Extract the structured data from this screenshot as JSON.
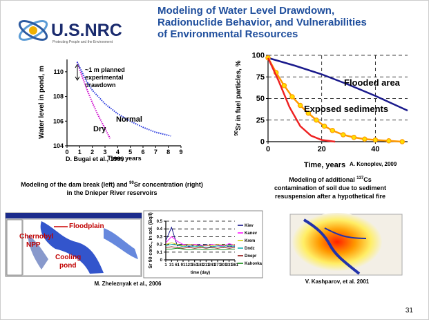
{
  "header": {
    "logo": "U.S.NRC",
    "logo_tagline": "Protecting People and the Environment",
    "title": [
      "Modeling of Water Level Drawdown,",
      "Radionuclide Behavior, and Vulnerabilities",
      "of Environmental Resources"
    ]
  },
  "pond_chart": {
    "type": "line",
    "ylabel": "Water level in pond, m",
    "xlabel": "Time, years",
    "annotation": [
      "~1 m planned",
      "experimental",
      "drawdown"
    ],
    "xlim": [
      0,
      9
    ],
    "ylim": [
      104,
      111
    ],
    "xticks": [
      0,
      1,
      2,
      3,
      4,
      5,
      6,
      7,
      8,
      9
    ],
    "yticks": [
      104,
      106,
      108,
      110
    ],
    "grid": false,
    "series": [
      {
        "name": "Dry",
        "color": "#cc00cc",
        "x": [
          0.8,
          1.2,
          1.6,
          2,
          2.4,
          2.8,
          3.2,
          3.4
        ],
        "values": [
          110.8,
          109.6,
          108.5,
          107.5,
          106.6,
          105.8,
          105,
          104.6
        ]
      },
      {
        "name": "Normal",
        "color": "#2233dd",
        "x": [
          0.8,
          1.5,
          2,
          3,
          4,
          5,
          6,
          7,
          8.2
        ],
        "values": [
          110.8,
          109.3,
          108.5,
          107.4,
          106.6,
          106,
          105.5,
          105.1,
          104.8
        ]
      }
    ],
    "caption": "D. Bugai et al., 1999"
  },
  "particles_chart": {
    "type": "line",
    "ylabel": {
      "sup": "90",
      "text": "Sr in fuel particles, %"
    },
    "xlabel": "Time, years",
    "xlim": [
      0,
      52
    ],
    "ylim": [
      0,
      100
    ],
    "xticks": [
      0,
      20,
      40
    ],
    "yticks": [
      0,
      25,
      50,
      75,
      100
    ],
    "grid": true,
    "series": [
      {
        "name": "Flooded area",
        "color": "#1a1a8c",
        "x": [
          0,
          10,
          20,
          30,
          40,
          52
        ],
        "values": [
          97,
          88,
          78,
          66,
          53,
          36
        ]
      },
      {
        "name": "Exposed sediments",
        "color": "#ff9900",
        "marker": "circle",
        "x": [
          0,
          3,
          6,
          9,
          12,
          15,
          18,
          21,
          24,
          28,
          32,
          36,
          40,
          45,
          50
        ],
        "values": [
          97,
          80,
          65,
          52,
          42,
          33,
          25,
          18,
          13,
          8,
          5,
          3,
          2,
          1,
          0
        ]
      },
      {
        "color": "#ee2222",
        "x": [
          0,
          4,
          8,
          12,
          16,
          20,
          25
        ],
        "values": [
          97,
          70,
          40,
          18,
          7,
          2,
          0
        ]
      }
    ],
    "caption": "A. Konoplev, 2009"
  },
  "dam_section": {
    "title": [
      "Modeling of the dam break (left) and ",
      "90",
      "Sr concentration (right)",
      "in the Dnieper River reservoirs"
    ],
    "labels": [
      "Chernobyl",
      "NPP",
      "Floodplain",
      "Cooling",
      "pond"
    ],
    "caption": "M. Zheleznyak et al., 2006"
  },
  "sr_chart": {
    "type": "line",
    "ylabel": "Sr 90 conc., in sol. (Bq/l)",
    "xlabel": "time (day)",
    "xlim": [
      1,
      361
    ],
    "ylim": [
      0,
      0.5
    ],
    "xticks": [
      1,
      31,
      61,
      91,
      121,
      151,
      181,
      211,
      241,
      271,
      301,
      331,
      361
    ],
    "yticks": [
      0,
      0.1,
      0.2,
      0.3,
      0.4,
      0.5
    ],
    "grid": true,
    "x": [
      1,
      31,
      61,
      91,
      121,
      151,
      181,
      211,
      241,
      271,
      301,
      331,
      361
    ],
    "series": [
      {
        "name": "Kiev",
        "color": "#000080",
        "values": [
          0.25,
          0.42,
          0.18,
          0.2,
          0.17,
          0.19,
          0.18,
          0.2,
          0.17,
          0.18,
          0.19,
          0.17,
          0.18
        ]
      },
      {
        "name": "Kanev",
        "color": "#ff00ff",
        "values": [
          0.22,
          0.3,
          0.24,
          0.2,
          0.19,
          0.2,
          0.19,
          0.18,
          0.2,
          0.19,
          0.18,
          0.21,
          0.19
        ]
      },
      {
        "name": "Krem",
        "color": "#cccc00",
        "values": [
          0.2,
          0.22,
          0.2,
          0.18,
          0.2,
          0.19,
          0.17,
          0.19,
          0.18,
          0.2,
          0.19,
          0.18,
          0.2
        ]
      },
      {
        "name": "Dndz",
        "color": "#00aaaa",
        "values": [
          0.18,
          0.2,
          0.19,
          0.17,
          0.18,
          0.17,
          0.18,
          0.16,
          0.17,
          0.18,
          0.17,
          0.19,
          0.17
        ]
      },
      {
        "name": "Dnepr",
        "color": "#880000",
        "values": [
          0.16,
          0.17,
          0.16,
          0.15,
          0.16,
          0.15,
          0.16,
          0.15,
          0.16,
          0.15,
          0.16,
          0.15,
          0.16
        ]
      },
      {
        "name": "Kahovka",
        "color": "#008000",
        "values": [
          0.14,
          0.14,
          0.15,
          0.14,
          0.13,
          0.14,
          0.14,
          0.13,
          0.14,
          0.14,
          0.13,
          0.14,
          0.14
        ]
      }
    ]
  },
  "fire_section": {
    "title": [
      "Modeling of additional ",
      "137",
      "Cs",
      "contamination of soil due to sediment",
      "resuspension after a hypothetical fire"
    ],
    "caption": "V. Kashparov, et al. 2001"
  },
  "page_number": "31"
}
